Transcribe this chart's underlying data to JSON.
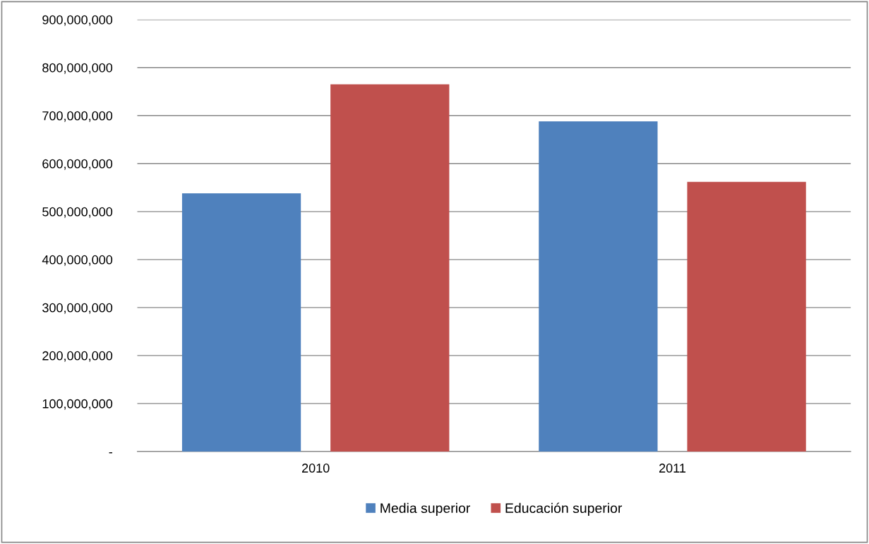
{
  "chart_data": {
    "type": "bar",
    "categories": [
      "2010",
      "2011"
    ],
    "series": [
      {
        "name": "Media superior",
        "color": "#4f81bd",
        "values": [
          538000000,
          688000000
        ]
      },
      {
        "name": "Educación superior",
        "color": "#c0504d",
        "values": [
          765000000,
          562000000
        ]
      }
    ],
    "ylim": [
      0,
      900000000
    ],
    "yticks": [
      {
        "value": 0,
        "label": "-"
      },
      {
        "value": 100000000,
        "label": "100,000,000"
      },
      {
        "value": 200000000,
        "label": "200,000,000"
      },
      {
        "value": 300000000,
        "label": "300,000,000"
      },
      {
        "value": 400000000,
        "label": "400,000,000"
      },
      {
        "value": 500000000,
        "label": "500,000,000"
      },
      {
        "value": 600000000,
        "label": "600,000,000"
      },
      {
        "value": 700000000,
        "label": "700,000,000"
      },
      {
        "value": 800000000,
        "label": "800,000,000"
      },
      {
        "value": 900000000,
        "label": "900,000,000"
      }
    ],
    "grid": "y",
    "legend": "bottom"
  }
}
